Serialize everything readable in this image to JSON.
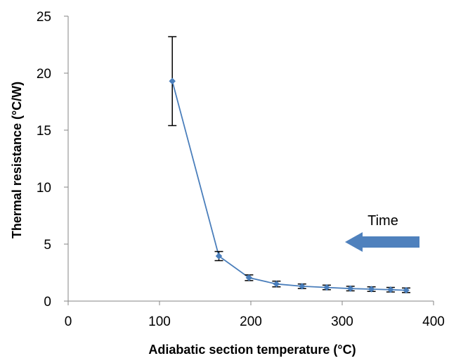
{
  "chart_data": {
    "type": "line",
    "xlabel": "Adiabatic section temperature (°C)",
    "ylabel": "Thermal resistance (°C/W)",
    "xlim": [
      0,
      400
    ],
    "ylim": [
      0,
      25
    ],
    "xticks": [
      "0",
      "100",
      "200",
      "300",
      "400"
    ],
    "yticks": [
      "0",
      "5",
      "10",
      "15",
      "20",
      "25"
    ],
    "grid": false,
    "series": [
      {
        "color": "#4a7ebb",
        "marker": "diamond",
        "points": [
          {
            "x": 114,
            "y": 19.3,
            "err": 3.9
          },
          {
            "x": 165,
            "y": 3.95,
            "err": 0.4
          },
          {
            "x": 198,
            "y": 2.05,
            "err": 0.25
          },
          {
            "x": 228,
            "y": 1.5,
            "err": 0.25
          },
          {
            "x": 256,
            "y": 1.3,
            "err": 0.2
          },
          {
            "x": 283,
            "y": 1.2,
            "err": 0.2
          },
          {
            "x": 309,
            "y": 1.1,
            "err": 0.2
          },
          {
            "x": 332,
            "y": 1.05,
            "err": 0.2
          },
          {
            "x": 353,
            "y": 1.0,
            "err": 0.2
          },
          {
            "x": 370,
            "y": 0.95,
            "err": 0.2
          }
        ]
      }
    ],
    "annotations": [
      {
        "text": "Time",
        "arrow": "left",
        "color": "#4f81bd"
      }
    ]
  }
}
